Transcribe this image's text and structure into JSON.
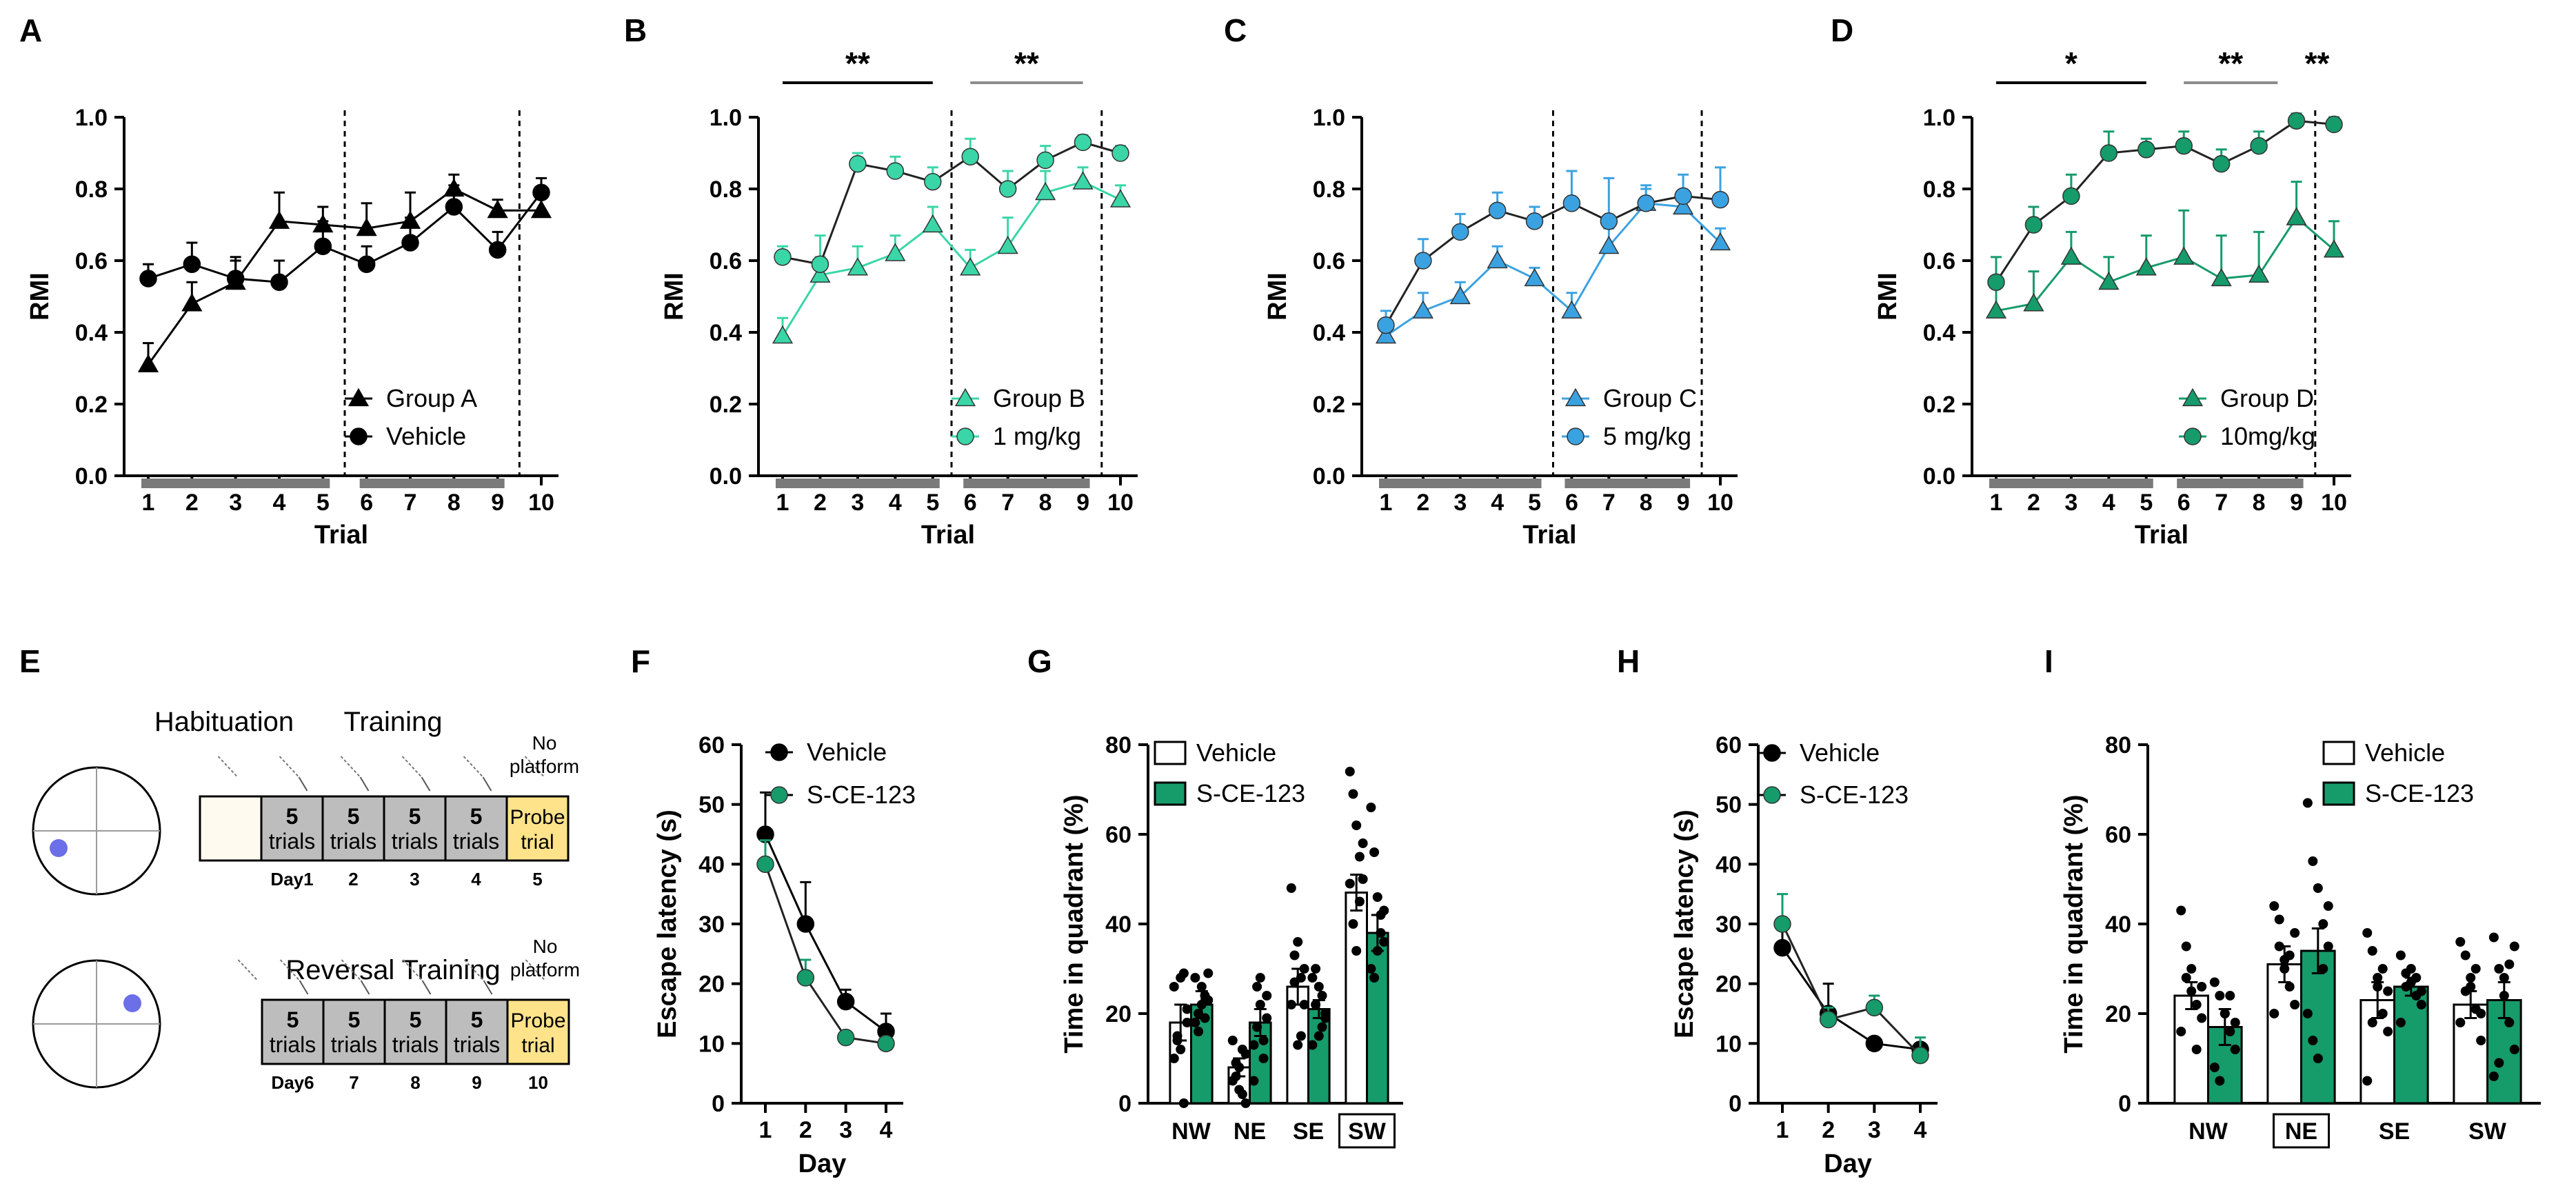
{
  "figure": {
    "colors": {
      "black": "#000000",
      "teal": "#3ad6a7",
      "blue": "#3ba2e2",
      "green": "#169b6b",
      "gray": "#8c8c8c",
      "yellow": "#ffe38a",
      "box_gray": "#bdbdbd",
      "cream": "#fffaef",
      "dot": "#6c6fe8"
    }
  },
  "chart_data": [
    {
      "id": "A",
      "panel_label": "A",
      "type": "line",
      "xlabel": "Trial",
      "ylabel": "RMI",
      "ylim": [
        0,
        1.0
      ],
      "x": [
        1,
        2,
        3,
        4,
        5,
        6,
        7,
        8,
        9,
        10
      ],
      "x_tick_labels": [
        "1",
        "2",
        "3",
        "4",
        "5",
        "6",
        "7",
        "8",
        "9",
        "10"
      ],
      "y_ticks": [
        0.0,
        0.2,
        0.4,
        0.6,
        0.8,
        1.0
      ],
      "y_tick_labels": [
        "0.0",
        "0.2",
        "0.4",
        "0.6",
        "0.8",
        "1.0"
      ],
      "series": [
        {
          "name": "Group A",
          "marker": "triangle",
          "color": "#000000",
          "values": [
            0.31,
            0.48,
            0.54,
            0.71,
            0.7,
            0.69,
            0.71,
            0.8,
            0.74,
            0.74
          ],
          "errors": [
            0.06,
            0.06,
            0.07,
            0.08,
            0.05,
            0.07,
            0.08,
            0.04,
            0.03,
            0.04
          ]
        },
        {
          "name": "Vehicle",
          "marker": "circle",
          "color": "#000000",
          "values": [
            0.55,
            0.59,
            0.55,
            0.54,
            0.64,
            0.59,
            0.65,
            0.75,
            0.63,
            0.79
          ],
          "errors": [
            0.04,
            0.06,
            0.05,
            0.06,
            0.07,
            0.05,
            0.07,
            0.06,
            0.05,
            0.04
          ]
        }
      ],
      "dashed_after": [
        5,
        9
      ],
      "bars_over": [],
      "legend": [
        "Group A",
        "Vehicle"
      ]
    },
    {
      "id": "B",
      "panel_label": "B",
      "type": "line",
      "xlabel": "Trial",
      "ylabel": "RMI",
      "ylim": [
        0,
        1.0
      ],
      "x": [
        1,
        2,
        3,
        4,
        5,
        6,
        7,
        8,
        9,
        10
      ],
      "x_tick_labels": [
        "1",
        "2",
        "3",
        "4",
        "5",
        "6",
        "7",
        "8",
        "9",
        "10"
      ],
      "y_ticks": [
        0.0,
        0.2,
        0.4,
        0.6,
        0.8,
        1.0
      ],
      "y_tick_labels": [
        "0.0",
        "0.2",
        "0.4",
        "0.6",
        "0.8",
        "1.0"
      ],
      "series": [
        {
          "name": "Group B",
          "marker": "triangle",
          "color": "#3ad6a7",
          "values": [
            0.39,
            0.56,
            0.58,
            0.62,
            0.7,
            0.58,
            0.64,
            0.79,
            0.82,
            0.77
          ],
          "errors": [
            0.05,
            0.05,
            0.06,
            0.05,
            0.05,
            0.05,
            0.08,
            0.06,
            0.04,
            0.04
          ]
        },
        {
          "name": "1 mg/kg",
          "marker": "circle",
          "color": "#3ad6a7",
          "values": [
            0.61,
            0.59,
            0.87,
            0.85,
            0.82,
            0.89,
            0.8,
            0.88,
            0.93,
            0.9
          ],
          "errors": [
            0.03,
            0.08,
            0.03,
            0.04,
            0.04,
            0.05,
            0.05,
            0.04,
            0.02,
            0.02
          ]
        }
      ],
      "dashed_after": [
        5,
        9
      ],
      "bars_over": [
        {
          "from": 1,
          "to": 5,
          "label": "**",
          "color": "#000000"
        },
        {
          "from": 6,
          "to": 9,
          "label": "**",
          "color": "#8c8c8c"
        }
      ],
      "legend": [
        "Group B",
        "1 mg/kg"
      ]
    },
    {
      "id": "C",
      "panel_label": "C",
      "type": "line",
      "xlabel": "Trial",
      "ylabel": "RMI",
      "ylim": [
        0,
        1.0
      ],
      "x": [
        1,
        2,
        3,
        4,
        5,
        6,
        7,
        8,
        9,
        10
      ],
      "x_tick_labels": [
        "1",
        "2",
        "3",
        "4",
        "5",
        "6",
        "7",
        "8",
        "9",
        "10"
      ],
      "y_ticks": [
        0.0,
        0.2,
        0.4,
        0.6,
        0.8,
        1.0
      ],
      "y_tick_labels": [
        "0.0",
        "0.2",
        "0.4",
        "0.6",
        "0.8",
        "1.0"
      ],
      "series": [
        {
          "name": "Group C",
          "marker": "triangle",
          "color": "#3ba2e2",
          "values": [
            0.39,
            0.46,
            0.5,
            0.6,
            0.55,
            0.46,
            0.64,
            0.76,
            0.75,
            0.65
          ],
          "errors": [
            0.04,
            0.05,
            0.04,
            0.04,
            0.03,
            0.05,
            0.05,
            0.04,
            0.04,
            0.04
          ]
        },
        {
          "name": "5 mg/kg",
          "marker": "circle",
          "color": "#3ba2e2",
          "values": [
            0.42,
            0.6,
            0.68,
            0.74,
            0.71,
            0.76,
            0.71,
            0.76,
            0.78,
            0.77
          ],
          "errors": [
            0.04,
            0.06,
            0.05,
            0.05,
            0.04,
            0.09,
            0.12,
            0.05,
            0.06,
            0.09
          ]
        }
      ],
      "dashed_after": [
        5,
        9
      ],
      "bars_over": [],
      "legend": [
        "Group C",
        "5 mg/kg"
      ]
    },
    {
      "id": "D",
      "panel_label": "D",
      "type": "line",
      "xlabel": "Trial",
      "ylabel": "RMI",
      "ylim": [
        0,
        1.0
      ],
      "x": [
        1,
        2,
        3,
        4,
        5,
        6,
        7,
        8,
        9,
        10
      ],
      "x_tick_labels": [
        "1",
        "2",
        "3",
        "4",
        "5",
        "6",
        "7",
        "8",
        "9",
        "10"
      ],
      "y_ticks": [
        0.0,
        0.2,
        0.4,
        0.6,
        0.8,
        1.0
      ],
      "y_tick_labels": [
        "0.0",
        "0.2",
        "0.4",
        "0.6",
        "0.8",
        "1.0"
      ],
      "series": [
        {
          "name": "Group D",
          "marker": "triangle",
          "color": "#169b6b",
          "values": [
            0.46,
            0.48,
            0.61,
            0.54,
            0.58,
            0.61,
            0.55,
            0.56,
            0.72,
            0.63
          ],
          "errors": [
            0.08,
            0.09,
            0.07,
            0.07,
            0.09,
            0.13,
            0.12,
            0.12,
            0.1,
            0.08
          ]
        },
        {
          "name": "10mg/kg",
          "marker": "circle",
          "color": "#169b6b",
          "values": [
            0.54,
            0.7,
            0.78,
            0.9,
            0.91,
            0.92,
            0.87,
            0.92,
            0.99,
            0.98
          ],
          "errors": [
            0.07,
            0.05,
            0.06,
            0.06,
            0.03,
            0.04,
            0.04,
            0.04,
            0.02,
            0.02
          ]
        }
      ],
      "dashed_after": [
        9
      ],
      "bars_over": [
        {
          "from": 1,
          "to": 5,
          "label": "*",
          "color": "#000000"
        },
        {
          "from": 6,
          "to": 8.5,
          "label": "**",
          "color": "#8c8c8c"
        },
        {
          "from": 9.55,
          "to": 9.55,
          "label": "**",
          "color": "#000000",
          "no_line": true
        }
      ],
      "legend": [
        "Group D",
        "10mg/kg"
      ]
    },
    {
      "id": "F",
      "panel_label": "F",
      "type": "line",
      "xlabel": "Day",
      "ylabel": "Escape latency (s)",
      "ylim": [
        0,
        60
      ],
      "x": [
        1,
        2,
        3,
        4
      ],
      "x_tick_labels": [
        "1",
        "2",
        "3",
        "4"
      ],
      "y_ticks": [
        0,
        10,
        20,
        30,
        40,
        50,
        60
      ],
      "y_tick_labels": [
        "0",
        "10",
        "20",
        "30",
        "40",
        "50",
        "60"
      ],
      "series": [
        {
          "name": "Vehicle",
          "marker": "circle",
          "color": "#000000",
          "values": [
            45,
            30,
            17,
            12
          ],
          "errors": [
            7,
            7,
            2,
            3
          ]
        },
        {
          "name": "S-CE-123",
          "marker": "circle",
          "color": "#169b6b",
          "values": [
            40,
            21,
            11,
            10
          ],
          "errors": [
            4,
            3,
            1,
            1
          ]
        }
      ],
      "legend": [
        "Vehicle",
        "S-CE-123"
      ]
    },
    {
      "id": "G",
      "panel_label": "G",
      "type": "bar",
      "ylabel": "Time in quadrant (%)",
      "ylim": [
        0,
        80
      ],
      "categories": [
        "NW",
        "NE",
        "SE",
        "SW"
      ],
      "boxed_category": "SW",
      "y_ticks": [
        0,
        20,
        40,
        60,
        80
      ],
      "y_tick_labels": [
        "0",
        "20",
        "40",
        "60",
        "80"
      ],
      "series": [
        {
          "name": "Vehicle",
          "color": "#ffffff",
          "values": [
            18,
            8,
            26,
            47
          ],
          "errors": [
            4,
            2,
            4,
            4
          ],
          "points": [
            [
              10,
              15,
              28,
              29,
              18,
              26,
              14,
              12,
              0,
              21
            ],
            [
              14,
              6,
              3,
              12,
              0,
              5,
              9,
              8,
              2,
              11
            ],
            [
              48,
              33,
              36,
              28,
              30,
              22,
              27,
              13,
              15,
              22
            ],
            [
              74,
              69,
              62,
              55,
              58,
              49,
              40,
              34,
              45,
              50
            ]
          ]
        },
        {
          "name": "S-CE-123",
          "color": "#169b6b",
          "values": [
            22,
            18,
            21,
            38
          ],
          "errors": [
            3,
            3,
            2,
            4
          ],
          "points": [
            [
              18,
              20,
              26,
              24,
              29,
              28,
              16,
              22,
              19,
              23
            ],
            [
              5,
              26,
              28,
              10,
              19,
              13,
              17,
              22,
              14,
              24
            ],
            [
              28,
              30,
              26,
              17,
              19,
              13,
              22,
              15,
              24,
              20
            ],
            [
              66,
              56,
              46,
              42,
              36,
              30,
              28,
              34,
              38,
              43
            ]
          ]
        }
      ],
      "legend": [
        "Vehicle",
        "S-CE-123"
      ]
    },
    {
      "id": "H",
      "panel_label": "H",
      "type": "line",
      "xlabel": "Day",
      "ylabel": "Escape latency (s)",
      "ylim": [
        0,
        60
      ],
      "x": [
        1,
        2,
        3,
        4
      ],
      "x_tick_labels": [
        "1",
        "2",
        "3",
        "4"
      ],
      "y_ticks": [
        0,
        10,
        20,
        30,
        40,
        50,
        60
      ],
      "y_tick_labels": [
        "0",
        "10",
        "20",
        "30",
        "40",
        "50",
        "60"
      ],
      "series": [
        {
          "name": "Vehicle",
          "marker": "circle",
          "color": "#000000",
          "values": [
            26,
            15,
            10,
            9
          ],
          "errors": [
            3,
            5,
            1,
            1
          ]
        },
        {
          "name": "S-CE-123",
          "marker": "circle",
          "color": "#169b6b",
          "values": [
            30,
            14,
            16,
            8
          ],
          "errors": [
            5,
            2,
            2,
            3
          ]
        }
      ],
      "legend": [
        "Vehicle",
        "S-CE-123"
      ]
    },
    {
      "id": "I",
      "panel_label": "I",
      "type": "bar",
      "ylabel": "Time in quadrant (%)",
      "ylim": [
        0,
        80
      ],
      "categories": [
        "NW",
        "NE",
        "SE",
        "SW"
      ],
      "boxed_category": "NE",
      "y_ticks": [
        0,
        20,
        40,
        60,
        80
      ],
      "y_tick_labels": [
        "0",
        "20",
        "40",
        "60",
        "80"
      ],
      "series": [
        {
          "name": "Vehicle",
          "color": "#ffffff",
          "values": [
            24,
            31,
            23,
            22
          ],
          "errors": [
            3,
            4,
            4,
            3
          ],
          "points": [
            [
              43,
              35,
              25,
              22,
              19,
              16,
              28,
              30,
              12,
              26
            ],
            [
              44,
              41,
              32,
              26,
              22,
              20,
              35,
              30,
              33,
              38
            ],
            [
              38,
              34,
              26,
              20,
              16,
              5,
              18,
              28,
              30,
              25
            ],
            [
              36,
              33,
              28,
              21,
              14,
              18,
              25,
              26,
              30,
              20
            ]
          ]
        },
        {
          "name": "S-CE-123",
          "color": "#169b6b",
          "values": [
            17,
            34,
            26,
            23
          ],
          "errors": [
            4,
            5,
            2,
            4
          ],
          "points": [
            [
              27,
              24,
              20,
              16,
              12,
              8,
              5,
              20,
              24,
              18
            ],
            [
              67,
              54,
              48,
              40,
              35,
              20,
              14,
              10,
              30,
              44
            ],
            [
              33,
              29,
              27,
              24,
              22,
              18,
              26,
              30,
              28,
              25
            ],
            [
              37,
              30,
              24,
              18,
              12,
              6,
              9,
              28,
              31,
              35
            ]
          ]
        }
      ],
      "legend": [
        "Vehicle",
        "S-CE-123"
      ]
    }
  ],
  "panel_E": {
    "label": "E",
    "habituation": "Habituation",
    "training": "Training",
    "reversal_training": "Reversal Training",
    "no_platform_top": [
      "No",
      "platform"
    ],
    "no_platform_bottom": [
      "No",
      "platform"
    ],
    "box_text_top": "5",
    "box_text_bottom": "trials",
    "probe_top": "Probe",
    "probe_bottom": "trial",
    "day_labels_top": [
      "Day1",
      "2",
      "3",
      "4",
      "5"
    ],
    "day_labels_bottom": [
      "Day6",
      "7",
      "8",
      "9",
      "10"
    ]
  }
}
